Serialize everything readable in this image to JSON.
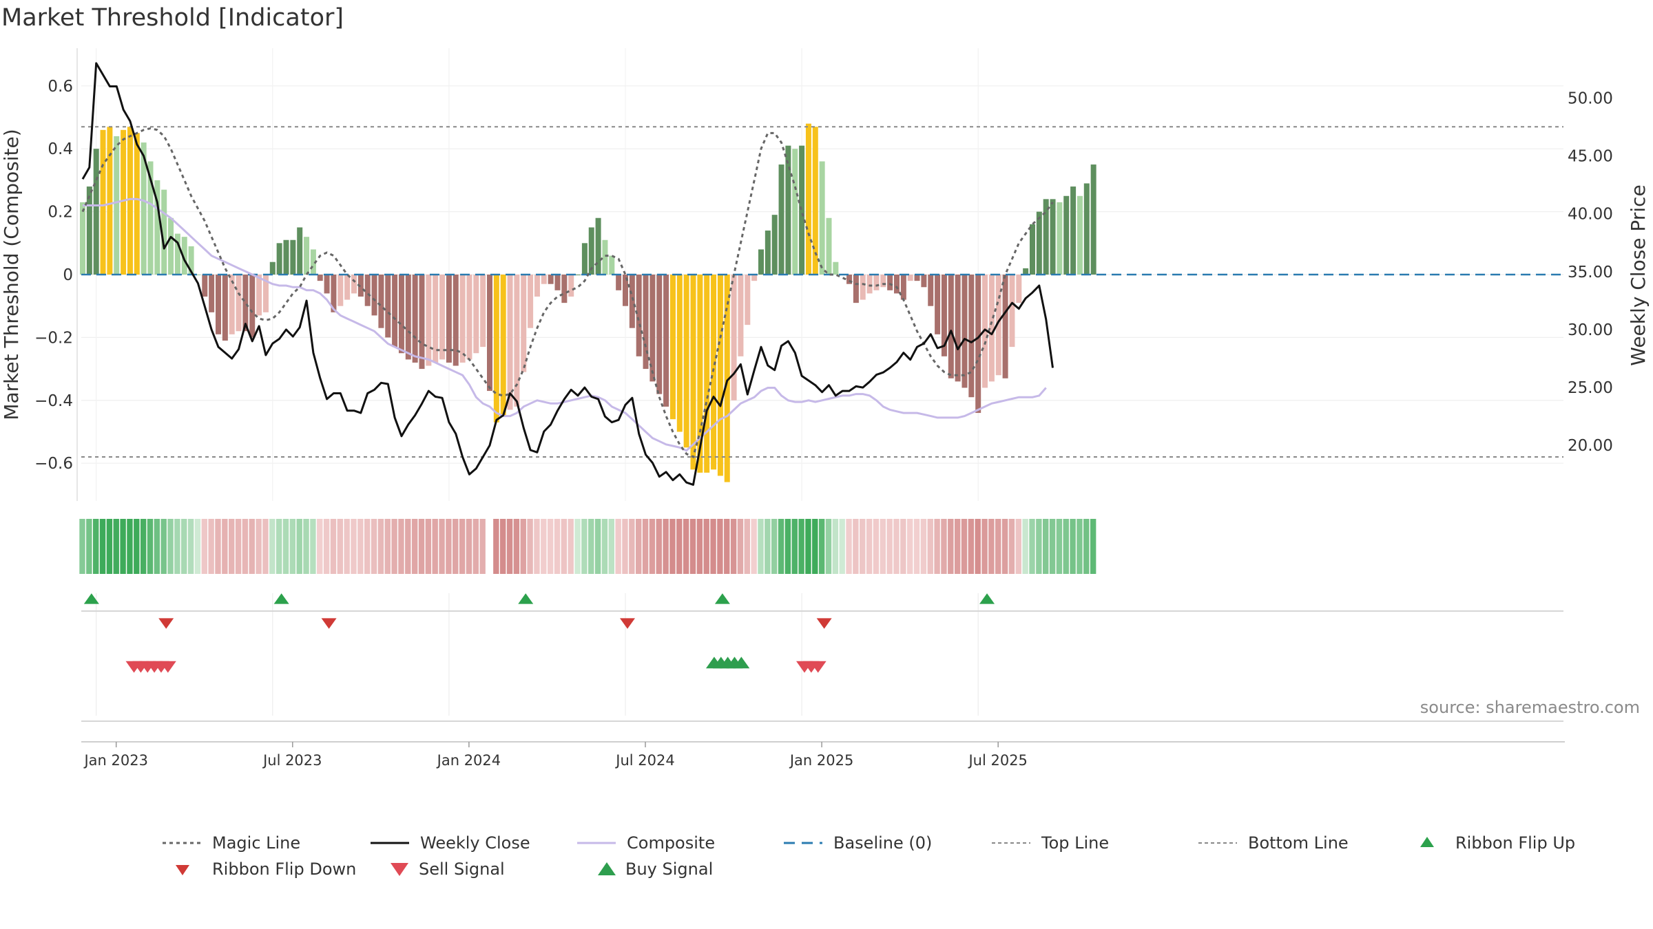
{
  "chart_data": {
    "type": "bar",
    "title": "Market Threshold [Indicator]",
    "source": "source: sharemaestro.com",
    "ylabel_left": "Market Threshold (Composite)",
    "ylabel_right": "Weekly Close Price",
    "ylim_left": [
      -0.72,
      0.72
    ],
    "ylim_right": [
      15.2,
      54.3
    ],
    "yticks_left": [
      {
        "value": 0.6,
        "label": "0.6"
      },
      {
        "value": 0.4,
        "label": "0.4"
      },
      {
        "value": 0.2,
        "label": "0.2"
      },
      {
        "value": 0,
        "label": "0"
      },
      {
        "value": -0.2,
        "label": "−0.2"
      },
      {
        "value": -0.4,
        "label": "−0.4"
      },
      {
        "value": -0.6,
        "label": "−0.6"
      }
    ],
    "yticks_right": [
      {
        "value": 50,
        "label": "50.00"
      },
      {
        "value": 45,
        "label": "45.00"
      },
      {
        "value": 40,
        "label": "40.00"
      },
      {
        "value": 35,
        "label": "35.00"
      },
      {
        "value": 30,
        "label": "30.00"
      },
      {
        "value": 25,
        "label": "25.00"
      },
      {
        "value": 20,
        "label": "20.00"
      }
    ],
    "xticks": [
      {
        "index": 2,
        "label": "Jan 2023"
      },
      {
        "index": 28,
        "label": "Jul 2023"
      },
      {
        "index": 54,
        "label": "Jan 2024"
      },
      {
        "index": 80,
        "label": "Jul 2024"
      },
      {
        "index": 106,
        "label": "Jan 2025"
      },
      {
        "index": 132,
        "label": "Jul 2025"
      }
    ],
    "top_line": 0.47,
    "bottom_line": -0.58,
    "composite": [
      0.22,
      0.22,
      0.22,
      0.22,
      0.225,
      0.23,
      0.235,
      0.24,
      0.24,
      0.235,
      0.225,
      0.21,
      0.195,
      0.18,
      0.16,
      0.14,
      0.12,
      0.1,
      0.08,
      0.06,
      0.05,
      0.04,
      0.03,
      0.02,
      0.01,
      0.0,
      -0.01,
      -0.02,
      -0.03,
      -0.035,
      -0.035,
      -0.04,
      -0.04,
      -0.05,
      -0.05,
      -0.06,
      -0.08,
      -0.11,
      -0.13,
      -0.14,
      -0.15,
      -0.16,
      -0.17,
      -0.18,
      -0.2,
      -0.22,
      -0.23,
      -0.24,
      -0.25,
      -0.26,
      -0.265,
      -0.27,
      -0.28,
      -0.29,
      -0.3,
      -0.31,
      -0.32,
      -0.35,
      -0.39,
      -0.41,
      -0.42,
      -0.44,
      -0.45,
      -0.45,
      -0.44,
      -0.42,
      -0.41,
      -0.4,
      -0.405,
      -0.41,
      -0.41,
      -0.405,
      -0.4,
      -0.395,
      -0.39,
      -0.385,
      -0.39,
      -0.4,
      -0.42,
      -0.43,
      -0.44,
      -0.46,
      -0.48,
      -0.5,
      -0.52,
      -0.53,
      -0.54,
      -0.545,
      -0.55,
      -0.56,
      -0.54,
      -0.52,
      -0.5,
      -0.48,
      -0.46,
      -0.45,
      -0.43,
      -0.41,
      -0.4,
      -0.39,
      -0.37,
      -0.36,
      -0.36,
      -0.385,
      -0.4,
      -0.405,
      -0.405,
      -0.4,
      -0.405,
      -0.4,
      -0.395,
      -0.39,
      -0.385,
      -0.385,
      -0.38,
      -0.38,
      -0.385,
      -0.4,
      -0.42,
      -0.43,
      -0.435,
      -0.44,
      -0.44,
      -0.44,
      -0.445,
      -0.45,
      -0.455,
      -0.455,
      -0.455,
      -0.455,
      -0.45,
      -0.44,
      -0.43,
      -0.42,
      -0.41,
      -0.405,
      -0.4,
      -0.395,
      -0.39,
      -0.39,
      -0.39,
      -0.385,
      -0.36
    ],
    "magic_line": [
      0.2,
      0.25,
      0.3,
      0.35,
      0.38,
      0.41,
      0.43,
      0.44,
      0.45,
      0.46,
      0.465,
      0.46,
      0.44,
      0.4,
      0.35,
      0.3,
      0.25,
      0.21,
      0.17,
      0.12,
      0.07,
      0.02,
      -0.02,
      -0.06,
      -0.09,
      -0.12,
      -0.14,
      -0.145,
      -0.14,
      -0.12,
      -0.09,
      -0.06,
      -0.04,
      0.0,
      0.03,
      0.06,
      0.07,
      0.06,
      0.03,
      0.0,
      -0.02,
      -0.04,
      -0.06,
      -0.08,
      -0.1,
      -0.12,
      -0.14,
      -0.16,
      -0.18,
      -0.2,
      -0.22,
      -0.23,
      -0.24,
      -0.24,
      -0.24,
      -0.24,
      -0.25,
      -0.27,
      -0.3,
      -0.33,
      -0.36,
      -0.38,
      -0.385,
      -0.38,
      -0.35,
      -0.3,
      -0.23,
      -0.17,
      -0.12,
      -0.09,
      -0.07,
      -0.06,
      -0.05,
      -0.04,
      -0.02,
      0.02,
      0.04,
      0.06,
      0.06,
      0.05,
      0.0,
      -0.07,
      -0.15,
      -0.23,
      -0.31,
      -0.39,
      -0.45,
      -0.5,
      -0.54,
      -0.57,
      -0.58,
      -0.5,
      -0.4,
      -0.3,
      -0.2,
      -0.1,
      0.0,
      0.1,
      0.2,
      0.3,
      0.4,
      0.45,
      0.45,
      0.42,
      0.35,
      0.28,
      0.2,
      0.13,
      0.07,
      0.02,
      0.0,
      0.0,
      -0.01,
      -0.02,
      -0.03,
      -0.03,
      -0.035,
      -0.035,
      -0.03,
      -0.03,
      -0.04,
      -0.08,
      -0.13,
      -0.18,
      -0.22,
      -0.26,
      -0.29,
      -0.31,
      -0.32,
      -0.32,
      -0.32,
      -0.31,
      -0.27,
      -0.22,
      -0.15,
      -0.08,
      0.0,
      0.05,
      0.1,
      0.13,
      0.16,
      0.18,
      0.2,
      0.23
    ],
    "weekly_close": [
      43,
      44,
      53,
      52,
      51,
      51,
      49,
      48,
      46,
      45,
      43,
      41,
      37,
      38,
      37.5,
      36,
      35,
      34,
      32,
      30,
      28.5,
      28,
      27.5,
      28.3,
      30.5,
      29,
      30.3,
      27.8,
      28.8,
      29.2,
      30,
      29.4,
      30.2,
      32.5,
      28,
      25.8,
      24,
      24.5,
      24.5,
      23,
      23,
      22.8,
      24.5,
      24.8,
      25.4,
      25.3,
      22.4,
      20.8,
      21.8,
      22.6,
      23.6,
      24.7,
      24.2,
      24.1,
      22,
      21,
      19,
      17.5,
      18,
      19,
      20,
      22.2,
      22.6,
      24.5,
      23.8,
      21.5,
      19.6,
      19.4,
      21.2,
      21.8,
      23,
      24,
      24.8,
      24.3,
      25,
      24.2,
      24,
      22.5,
      22,
      22.2,
      23.5,
      24.1,
      21,
      19.2,
      18.5,
      17.3,
      17.7,
      17,
      17.5,
      16.8,
      16.6,
      19.8,
      23,
      24.2,
      23.4,
      25.6,
      26.2,
      27,
      24.4,
      26.5,
      28.5,
      26.9,
      26.5,
      28.6,
      29,
      28,
      26,
      25.6,
      25.2,
      24.6,
      25.2,
      24.3,
      24.7,
      24.7,
      25.1,
      25,
      25.5,
      26.1,
      26.3,
      26.7,
      27.2,
      28,
      27.4,
      28.5,
      28.8,
      29.6,
      28.4,
      28.6,
      29.9,
      28.3,
      29.2,
      28.9,
      29.3,
      30,
      29.6,
      30.7,
      31.5,
      32.3,
      31.8,
      32.7,
      33.2,
      33.8,
      30.9,
      26.7
    ],
    "histogram": [
      0.23,
      0.28,
      0.4,
      0.46,
      0.47,
      0.44,
      0.46,
      0.47,
      0.45,
      0.42,
      0.36,
      0.3,
      0.27,
      0.18,
      0.13,
      0.12,
      0.09,
      0.0,
      -0.07,
      -0.12,
      -0.19,
      -0.21,
      -0.19,
      -0.18,
      -0.18,
      -0.2,
      -0.13,
      -0.12,
      0.04,
      0.1,
      0.11,
      0.11,
      0.15,
      0.12,
      0.08,
      -0.02,
      -0.06,
      -0.12,
      -0.1,
      -0.08,
      -0.06,
      -0.07,
      -0.1,
      -0.13,
      -0.17,
      -0.2,
      -0.23,
      -0.25,
      -0.27,
      -0.28,
      -0.3,
      -0.29,
      -0.28,
      -0.27,
      -0.28,
      -0.29,
      -0.28,
      -0.27,
      -0.25,
      -0.23,
      -0.37,
      -0.47,
      -0.45,
      -0.43,
      -0.42,
      -0.31,
      -0.17,
      -0.07,
      -0.03,
      -0.03,
      -0.05,
      -0.09,
      -0.07,
      0.0,
      0.1,
      0.15,
      0.18,
      0.11,
      0.06,
      -0.05,
      -0.1,
      -0.17,
      -0.26,
      -0.3,
      -0.34,
      -0.38,
      -0.42,
      -0.46,
      -0.5,
      -0.55,
      -0.62,
      -0.63,
      -0.63,
      -0.62,
      -0.64,
      -0.66,
      -0.4,
      -0.26,
      -0.16,
      -0.02,
      0.08,
      0.14,
      0.19,
      0.35,
      0.41,
      0.4,
      0.41,
      0.48,
      0.47,
      0.36,
      0.18,
      0.04,
      0.0,
      -0.03,
      -0.09,
      -0.08,
      -0.06,
      -0.05,
      -0.04,
      -0.05,
      -0.06,
      -0.08,
      -0.02,
      -0.02,
      -0.04,
      -0.1,
      -0.19,
      -0.26,
      -0.33,
      -0.34,
      -0.36,
      -0.39,
      -0.44,
      -0.36,
      -0.34,
      -0.32,
      -0.33,
      -0.23,
      -0.09,
      0.02,
      0.16,
      0.2,
      0.24,
      0.24,
      0.23,
      0.25,
      0.28,
      0.25,
      0.29,
      0.35
    ],
    "ribbon_flip_up": [
      1,
      29,
      65,
      94,
      133
    ],
    "ribbon_flip_down": [
      12,
      36,
      80,
      109
    ],
    "sell_signals": [
      3,
      4,
      5,
      6,
      7,
      8
    ],
    "buy_signals": [
      87,
      88,
      89,
      90,
      91
    ],
    "sell_signals_late": [
      100,
      101,
      102
    ],
    "legend_items": [
      {
        "key": "magic",
        "label": "Magic Line"
      },
      {
        "key": "close",
        "label": "Weekly Close"
      },
      {
        "key": "composite",
        "label": "Composite"
      },
      {
        "key": "baseline",
        "label": "Baseline (0)"
      },
      {
        "key": "top",
        "label": "Top Line"
      },
      {
        "key": "bottom",
        "label": "Bottom Line"
      },
      {
        "key": "flipup",
        "label": "Ribbon Flip Up"
      },
      {
        "key": "flipdown",
        "label": "Ribbon Flip Down"
      },
      {
        "key": "sell",
        "label": "Sell Signal"
      },
      {
        "key": "buy",
        "label": "Buy Signal"
      }
    ],
    "colors": {
      "strong_pos": "#5e8f5e",
      "weak_pos": "#a8d5a2",
      "strong_neg": "#a8706c",
      "weak_neg": "#e9bab5",
      "extreme": "#f7c21b",
      "magic": "#666666",
      "close": "#111111",
      "composite": "#c6b9e8",
      "baseline": "#2a7bb0",
      "ref_lines": "#888888",
      "flip_up": "#2ca14c",
      "flip_down": "#d03a36",
      "sell": "#e04a55",
      "buy": "#2e9e4e",
      "ribbon_green_dark": "#3eab5a",
      "ribbon_green_light": "#cfead4",
      "ribbon_red_dark": "#d48c8c",
      "ribbon_red_light": "#f3d2d2"
    },
    "legend": "bottom"
  }
}
